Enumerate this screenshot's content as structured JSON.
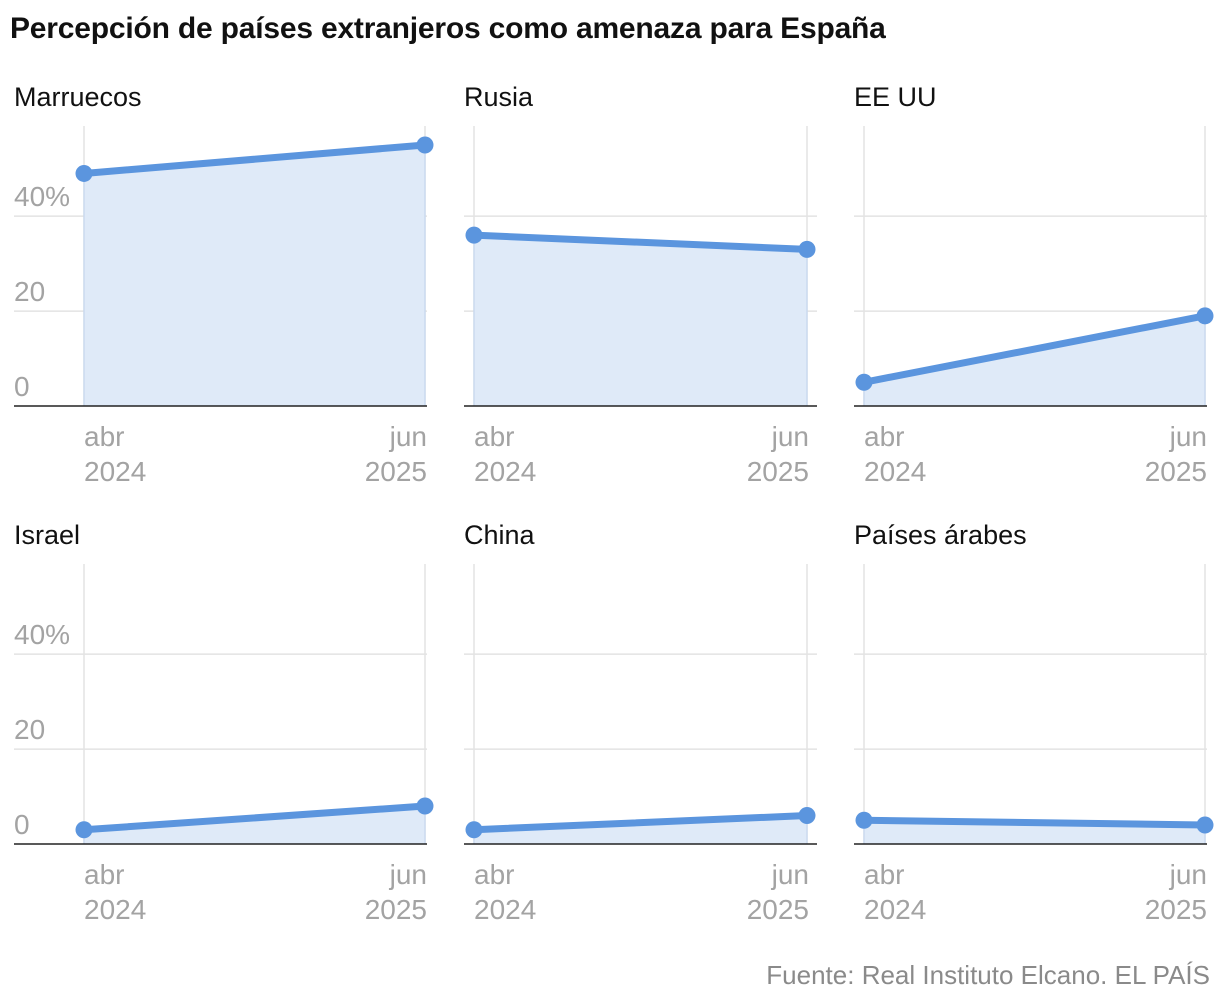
{
  "title": "Percepción de países extranjeros como amenaza para España",
  "source": "Fuente: Real Instituto Elcano. EL PAÍS",
  "colors": {
    "line": "#5b95de",
    "area": "#dfeaf8"
  },
  "chart_data": {
    "type": "area",
    "title": "Percepción de países extranjeros como amenaza para España",
    "x": [
      "abr 2024",
      "jun 2025"
    ],
    "x_tick_labels": [
      {
        "line1": "abr",
        "line2": "2024"
      },
      {
        "line1": "jun",
        "line2": "2025"
      }
    ],
    "y_ticks": [
      {
        "value": 0,
        "label": "0"
      },
      {
        "value": 20,
        "label": "20"
      },
      {
        "value": 40,
        "label": "40%"
      }
    ],
    "ylim": [
      0,
      59
    ],
    "ylabel": "",
    "xlabel": "",
    "panels": [
      {
        "name": "Marruecos",
        "values": [
          49,
          55
        ]
      },
      {
        "name": "Rusia",
        "values": [
          36,
          33
        ]
      },
      {
        "name": "EE UU",
        "values": [
          5,
          19
        ]
      },
      {
        "name": "Israel",
        "values": [
          3,
          8
        ]
      },
      {
        "name": "China",
        "values": [
          3,
          6
        ]
      },
      {
        "name": "Países árabes",
        "values": [
          5,
          4
        ]
      }
    ]
  }
}
